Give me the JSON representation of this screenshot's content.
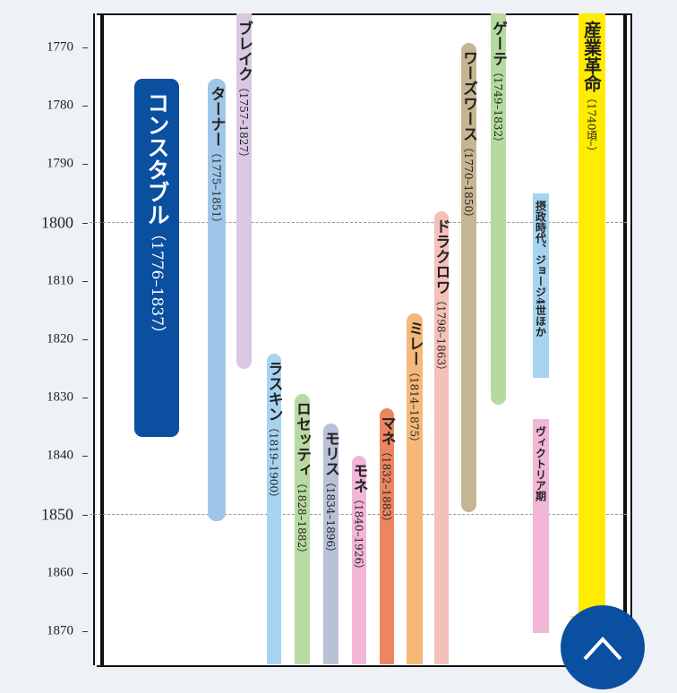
{
  "axis": {
    "labels": [
      "1770",
      "1780",
      "1790",
      "1800",
      "1810",
      "1820",
      "1830",
      "1840",
      "1850",
      "1860",
      "1870"
    ]
  },
  "bars": [
    {
      "name": "コンスタブル",
      "years": "（1776–1837）",
      "color": "#0a4fa0"
    },
    {
      "name": "ターナー",
      "years": "（1775–1851）",
      "color": "#9fc6e8"
    },
    {
      "name": "ブレイク",
      "years": "（1757–1827）",
      "color": "#d9c8e2"
    },
    {
      "name": "ラスキン",
      "years": "（1819–1900）",
      "color": "#a6d4f0"
    },
    {
      "name": "ロセッティ",
      "years": "（1828–1882）",
      "color": "#b8da a2"
    },
    {
      "name": "モリス",
      "years": "（1834–1896）",
      "color": "#b8c1d6"
    },
    {
      "name": "モネ",
      "years": "（1840–1926）",
      "color": "#f2b6d6"
    },
    {
      "name": "マネ",
      "years": "（1832–1883）",
      "color": "#ec8660"
    },
    {
      "name": "ミレー",
      "years": "（1814–1875）",
      "color": "#f5b878"
    },
    {
      "name": "ドラクロワ",
      "years": "（1798–1863）",
      "color": "#f5c0b8"
    },
    {
      "name": "ワーズワース",
      "years": "（1770–1850）",
      "color": "#c6b592"
    },
    {
      "name": "ゲーテ",
      "years": "（1749–1832）",
      "color": "#b6d9a0"
    },
    {
      "name": "摂政時代、ジョージ4世ほか",
      "years": "",
      "color": "#a6d4f0"
    },
    {
      "name": "ヴィクトリア期",
      "years": "",
      "color": "#f2b6d6"
    },
    {
      "name": "産業革命",
      "years": "（1740頃–）",
      "color": "#ffec00"
    }
  ]
}
